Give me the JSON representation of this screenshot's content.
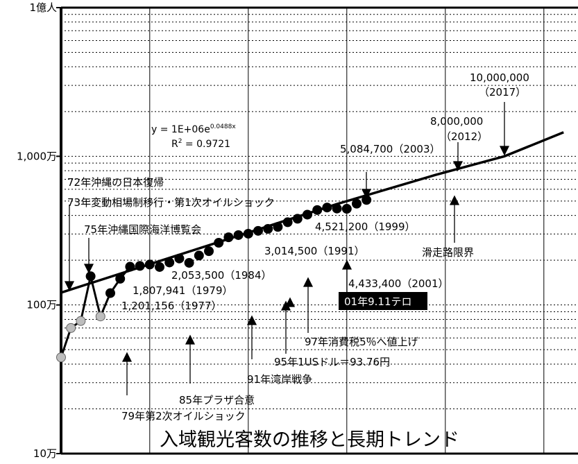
{
  "chart_data": {
    "type": "scatter",
    "title": "入域観光客数の推移と長期トレンド",
    "xlabel": "",
    "ylabel": "",
    "y_scale": "log",
    "ylim": [
      100000,
      100000000
    ],
    "xlim": [
      1971,
      2023
    ],
    "y_ticks": [
      {
        "value": 100000,
        "label": "10万"
      },
      {
        "value": 1000000,
        "label": "100万"
      },
      {
        "value": 10000000,
        "label": "1,000万"
      },
      {
        "value": 100000000,
        "label": "1億人"
      }
    ],
    "x_vlines": [
      1981,
      1991,
      2001,
      2011,
      2021
    ],
    "grid": {
      "horizontal": "dotted",
      "vertical": "solid"
    },
    "series": [
      {
        "x": [
          1972,
          1973,
          1974,
          1975,
          1976,
          1977,
          1978,
          1979,
          1980,
          1981,
          1982,
          1983,
          1984,
          1985,
          1986,
          1987,
          1988,
          1989,
          1990,
          1991,
          1992,
          1993,
          1994,
          1995,
          1996,
          1997,
          1998,
          1999,
          2000,
          2001,
          2002,
          2003
        ],
        "y": [
          444000,
          700000,
          780000,
          1560000,
          837000,
          1201156,
          1500000,
          1807941,
          1830000,
          1870000,
          1800000,
          1930000,
          2053500,
          1920000,
          2150000,
          2300000,
          2620000,
          2850000,
          2950000,
          3014500,
          3150000,
          3250000,
          3350000,
          3600000,
          3800000,
          4050000,
          4350000,
          4521200,
          4450000,
          4433400,
          4800000,
          5084700
        ],
        "colors": [
          "#bdbdbd",
          "#bdbdbd",
          "#bdbdbd",
          "#000000",
          "#bdbdbd",
          "#000000",
          "#000000",
          "#000000",
          "#000000",
          "#000000",
          "#000000",
          "#000000",
          "#000000",
          "#000000",
          "#000000",
          "#000000",
          "#000000",
          "#000000",
          "#000000",
          "#000000",
          "#000000",
          "#000000",
          "#000000",
          "#000000",
          "#000000",
          "#000000",
          "#000000",
          "#000000",
          "#000000",
          "#000000",
          "#000000",
          "#000000"
        ]
      }
    ],
    "trendline": {
      "equation": "y = 1E+06e",
      "equation_exp": "0.0488x",
      "r2": "R",
      "r2_sup": "2",
      "r2_value": " = 0.9721",
      "x": [
        1972,
        1980,
        1990,
        2000,
        2010,
        2017,
        2023
      ],
      "y": [
        1210000,
        1790000,
        2920000,
        4770000,
        7490000,
        10000000,
        14500000
      ]
    },
    "annotations": {
      "events": [
        "72年沖縄の日本復帰",
        "73年変動相場制移行・第1次オイルショック",
        "75年沖縄国際海洋博覧会",
        "79年第2次オイルショック",
        "85年プラザ合意",
        "91年湾岸戦争",
        "95年1USドル＝93.76円",
        "97年消費税5％へ値上げ",
        "滑走路限界"
      ],
      "values": [
        "1,807,941（1979）",
        "1,201,156（1977）",
        "2,053,500（1984）",
        "3,014,500（1991）",
        "4,521,200（1999）",
        "4,433,400（2001）",
        "5,084,700（2003）",
        "8,000,000",
        "（2012）",
        "10,000,000",
        "（2017）"
      ],
      "callout": "01年9.11テロ"
    }
  }
}
